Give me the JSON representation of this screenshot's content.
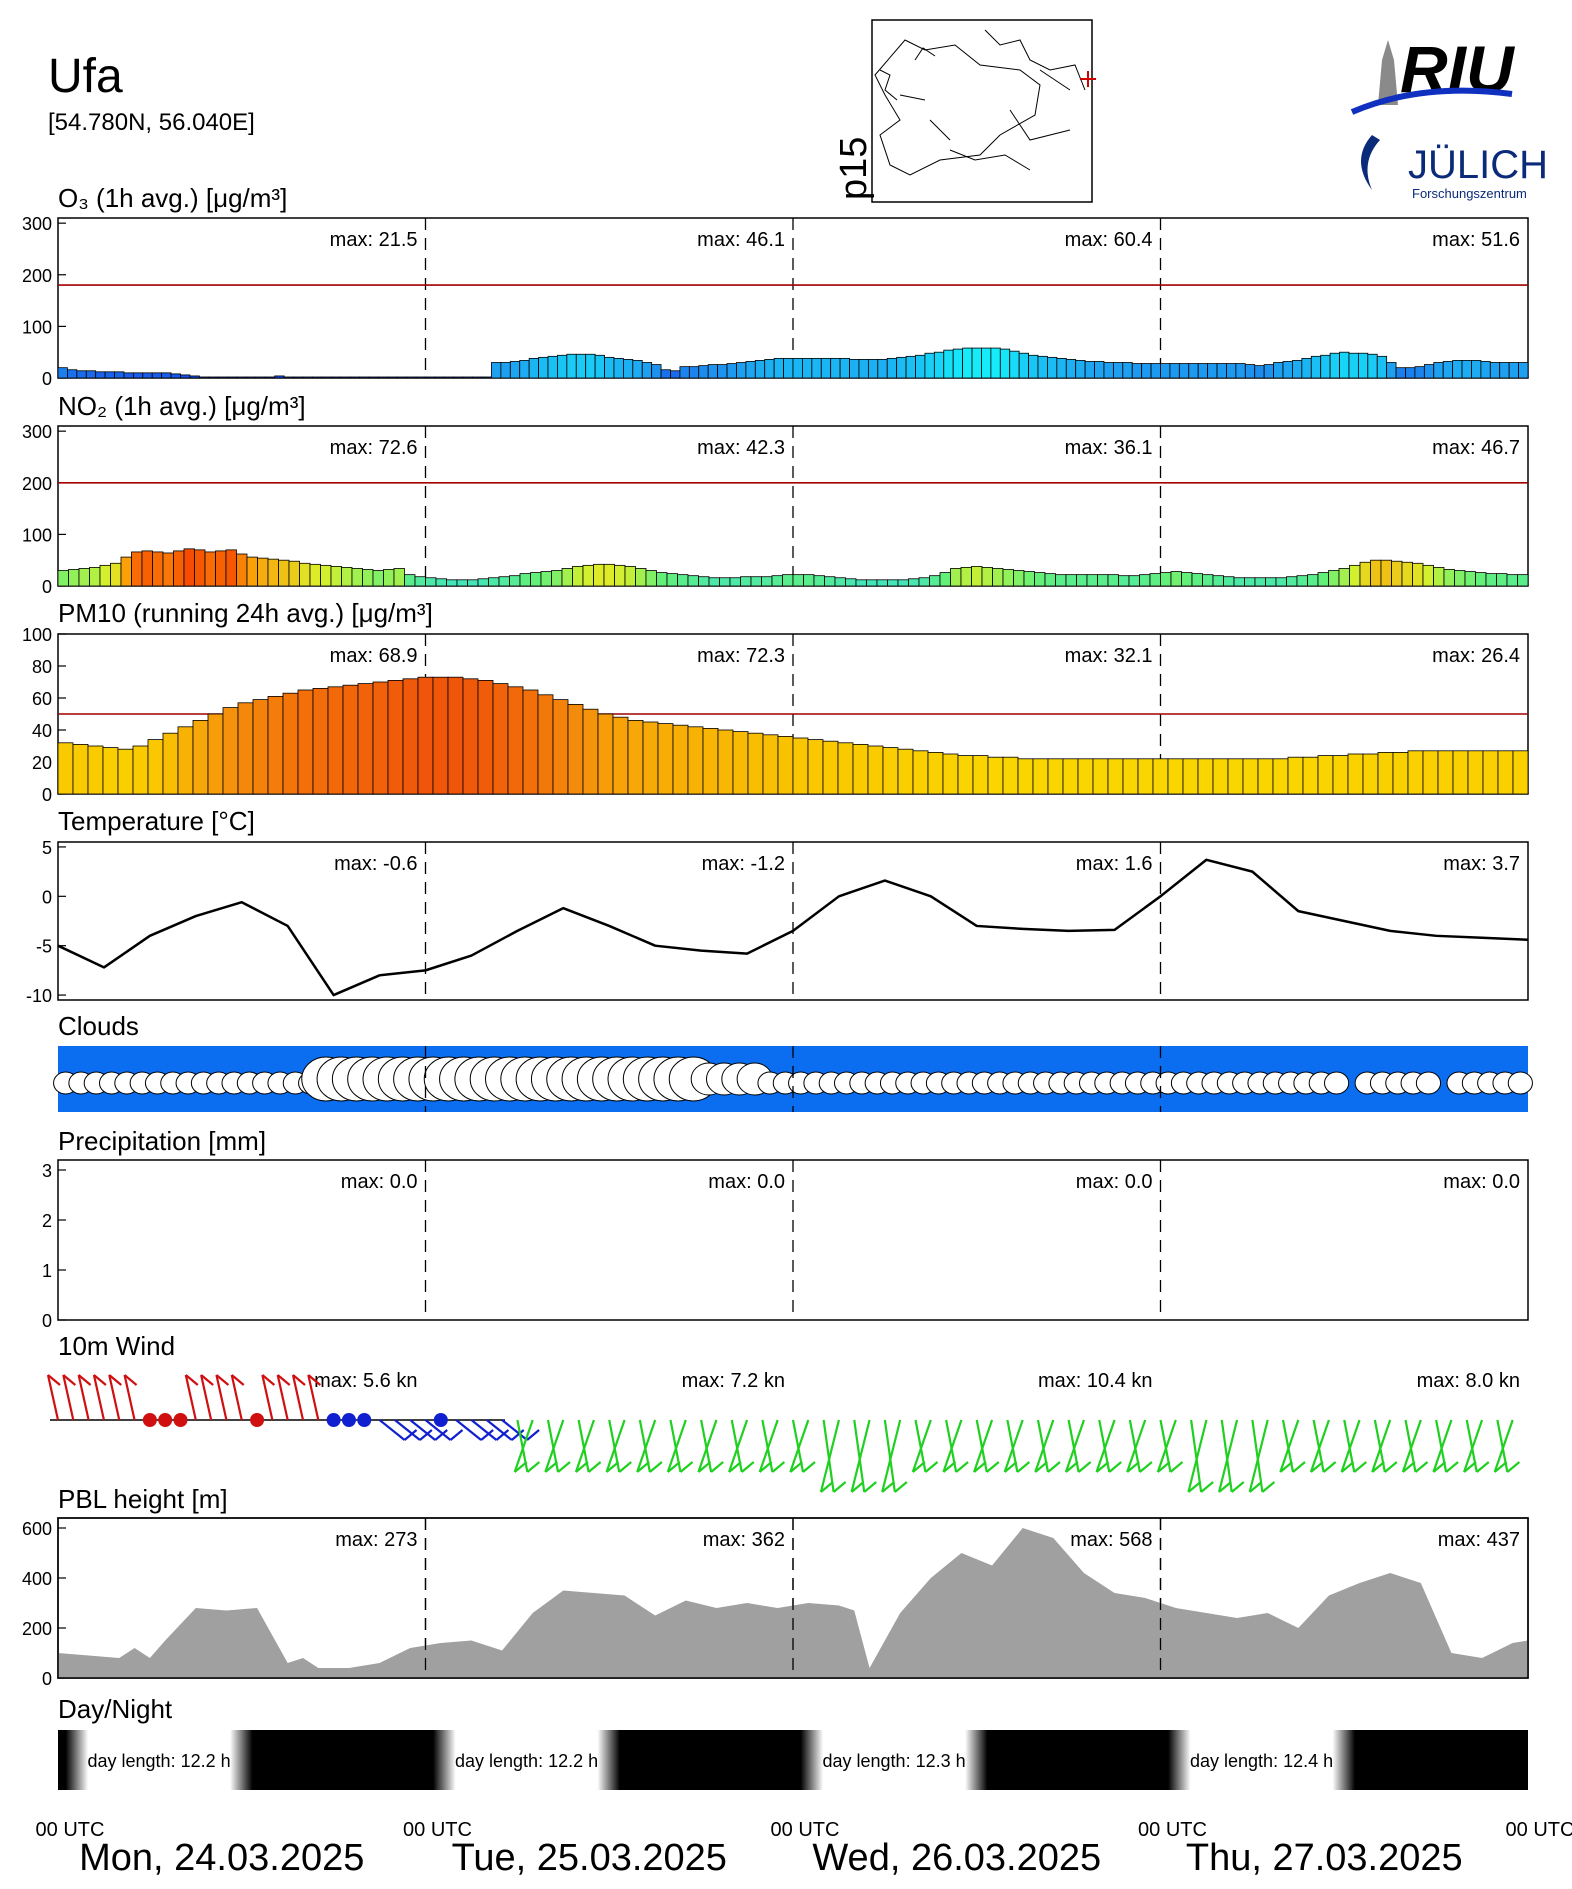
{
  "header": {
    "station": "Ufa",
    "coords": "[54.780N, 56.040E]",
    "map_label": "p15",
    "logo_riu": "RIU",
    "logo_julich": "JÜLICH",
    "logo_julich_sub": "Forschungszentrum"
  },
  "days": [
    "Mon, 24.03.2025",
    "Tue, 25.03.2025",
    "Wed, 26.03.2025",
    "Thu, 27.03.2025"
  ],
  "utc_label": "00 UTC",
  "max_prefix": "max:",
  "chart_data": [
    {
      "type": "bar",
      "title": "O₃ (1h avg.) [μg/m³]",
      "ylim": [
        0,
        310
      ],
      "yticks": [
        0,
        100,
        200,
        300
      ],
      "threshold": 180,
      "maxima": [
        "21.5",
        "46.1",
        "60.4",
        "51.6"
      ],
      "values": [
        20,
        16,
        14,
        14,
        12,
        12,
        12,
        10,
        10,
        10,
        10,
        10,
        8,
        6,
        4,
        2,
        2,
        2,
        2,
        2,
        2,
        2,
        2,
        4,
        2,
        2,
        2,
        2,
        2,
        2,
        2,
        2,
        2,
        2,
        2,
        2,
        2,
        2,
        2,
        2,
        2,
        2,
        2,
        2,
        2,
        2,
        30,
        30,
        32,
        34,
        38,
        40,
        42,
        44,
        46,
        46,
        46,
        44,
        40,
        38,
        36,
        34,
        30,
        26,
        16,
        14,
        22,
        22,
        24,
        26,
        26,
        28,
        30,
        32,
        34,
        36,
        38,
        38,
        38,
        38,
        38,
        38,
        38,
        38,
        36,
        36,
        36,
        36,
        38,
        40,
        42,
        44,
        48,
        50,
        54,
        56,
        58,
        58,
        58,
        58,
        56,
        52,
        48,
        44,
        42,
        40,
        38,
        36,
        34,
        32,
        32,
        30,
        30,
        30,
        28,
        28,
        28,
        28,
        28,
        28,
        28,
        28,
        28,
        28,
        28,
        28,
        26,
        24,
        26,
        30,
        32,
        34,
        38,
        42,
        44,
        48,
        50,
        48,
        48,
        46,
        42,
        30,
        20,
        20,
        22,
        26,
        30,
        32,
        34,
        34,
        34,
        32,
        30,
        30,
        30,
        30
      ],
      "colors": "o3"
    },
    {
      "type": "bar",
      "title": "NO₂ (1h avg.) [μg/m³]",
      "ylim": [
        0,
        310
      ],
      "yticks": [
        0,
        100,
        200,
        300
      ],
      "threshold": 200,
      "maxima": [
        "72.6",
        "42.3",
        "36.1",
        "46.7"
      ],
      "values": [
        30,
        32,
        34,
        36,
        40,
        44,
        56,
        66,
        68,
        66,
        64,
        68,
        72,
        70,
        66,
        68,
        70,
        62,
        56,
        54,
        52,
        50,
        48,
        44,
        42,
        40,
        38,
        36,
        34,
        32,
        30,
        32,
        34,
        22,
        18,
        16,
        14,
        12,
        12,
        12,
        14,
        16,
        18,
        20,
        24,
        26,
        28,
        30,
        34,
        38,
        40,
        42,
        42,
        40,
        38,
        34,
        30,
        26,
        24,
        22,
        20,
        18,
        16,
        16,
        16,
        18,
        18,
        18,
        20,
        22,
        22,
        22,
        20,
        18,
        16,
        14,
        12,
        12,
        12,
        12,
        12,
        14,
        16,
        20,
        26,
        34,
        36,
        38,
        36,
        34,
        32,
        30,
        28,
        26,
        24,
        22,
        22,
        22,
        22,
        22,
        22,
        20,
        20,
        22,
        24,
        26,
        28,
        26,
        24,
        22,
        20,
        18,
        16,
        16,
        16,
        16,
        16,
        18,
        20,
        22,
        26,
        30,
        34,
        40,
        46,
        50,
        50,
        48,
        46,
        44,
        40,
        36,
        32,
        30,
        28,
        26,
        24,
        24,
        22,
        22
      ],
      "colors": "no2"
    },
    {
      "type": "bar",
      "title": "PM10 (running 24h avg.) [μg/m³]",
      "ylim": [
        0,
        100
      ],
      "yticks": [
        0,
        20,
        40,
        60,
        80,
        100
      ],
      "threshold": 50,
      "maxima": [
        "68.9",
        "72.3",
        "32.1",
        "26.4"
      ],
      "values": [
        32,
        31,
        30,
        29,
        28,
        30,
        34,
        38,
        42,
        46,
        50,
        54,
        57,
        59,
        61,
        63,
        65,
        66,
        67,
        68,
        69,
        70,
        71,
        72,
        73,
        73,
        73,
        72,
        71,
        69,
        67,
        65,
        62,
        59,
        56,
        53,
        50,
        48,
        46,
        45,
        44,
        43,
        42,
        41,
        40,
        39,
        38,
        37,
        36,
        35,
        34,
        33,
        32,
        31,
        30,
        29,
        28,
        27,
        26,
        25,
        24,
        24,
        23,
        23,
        22,
        22,
        22,
        22,
        22,
        22,
        22,
        22,
        22,
        22,
        22,
        22,
        22,
        22,
        22,
        22,
        22,
        22,
        23,
        23,
        24,
        24,
        25,
        25,
        26,
        26,
        27,
        27,
        27,
        27,
        27,
        27,
        27,
        27
      ],
      "colors": "pm10"
    },
    {
      "type": "line",
      "title": "Temperature [°C]",
      "ylim": [
        -10.5,
        5.5
      ],
      "yticks": [
        -10,
        -5,
        0,
        5
      ],
      "maxima": [
        "-0.6",
        "-1.2",
        "1.6",
        "3.7"
      ],
      "x_hours": [
        0,
        3,
        6,
        9,
        12,
        15,
        18,
        21,
        24,
        27,
        30,
        33,
        36,
        39,
        42,
        45,
        48,
        51,
        54,
        57,
        60,
        63,
        66,
        69,
        72,
        75,
        78,
        81,
        84,
        87,
        90,
        93,
        96
      ],
      "values": [
        -5.0,
        -7.2,
        -4.0,
        -2.0,
        -0.6,
        -3.0,
        -10.0,
        -8.0,
        -7.5,
        -6.0,
        -3.5,
        -1.2,
        -3.0,
        -5.0,
        -5.5,
        -5.8,
        -3.5,
        0.0,
        1.6,
        0.0,
        -3.0,
        -3.3,
        -3.5,
        -3.4,
        0.0,
        3.7,
        2.5,
        -1.5,
        -2.5,
        -3.5,
        -4.0,
        -4.2,
        -4.4
      ]
    },
    {
      "type": "bar",
      "title": "Precipitation [mm]",
      "ylim": [
        0,
        3.2
      ],
      "yticks": [
        0,
        1,
        2,
        3
      ],
      "maxima": [
        "0.0",
        "0.0",
        "0.0",
        "0.0"
      ],
      "values": []
    },
    {
      "type": "area",
      "title": "PBL height [m]",
      "ylim": [
        0,
        640
      ],
      "yticks": [
        0,
        200,
        400,
        600
      ],
      "maxima": [
        "273",
        "362",
        "568",
        "437"
      ],
      "x_hours": [
        0,
        2,
        4,
        5,
        6,
        7,
        9,
        11,
        13,
        15,
        16,
        17,
        19,
        21,
        23,
        25,
        27,
        29,
        31,
        33,
        35,
        37,
        39,
        41,
        43,
        45,
        47,
        49,
        51,
        52,
        53,
        55,
        57,
        59,
        61,
        63,
        65,
        67,
        69,
        71,
        73,
        75,
        77,
        79,
        81,
        83,
        85,
        87,
        89,
        91,
        93,
        95,
        96
      ],
      "values": [
        100,
        90,
        80,
        120,
        80,
        150,
        280,
        270,
        280,
        60,
        80,
        40,
        40,
        60,
        120,
        140,
        150,
        110,
        260,
        350,
        340,
        330,
        250,
        310,
        280,
        300,
        280,
        300,
        290,
        270,
        40,
        260,
        400,
        500,
        450,
        600,
        560,
        420,
        340,
        320,
        280,
        260,
        240,
        260,
        200,
        330,
        380,
        420,
        380,
        100,
        80,
        140,
        150
      ]
    }
  ],
  "clouds": {
    "title": "Clouds"
  },
  "wind": {
    "title": "10m Wind",
    "maxima": [
      "5.6 kn",
      "7.2 kn",
      "10.4 kn",
      "8.0 kn"
    ]
  },
  "daynight": {
    "title": "Day/Night",
    "lengths": [
      "12.2 h",
      "12.2 h",
      "12.3 h",
      "12.4 h"
    ],
    "label": "day length:"
  },
  "colors": {
    "threshold": "#a00000",
    "cloud_bg": "#0b6ef0",
    "pbl": "#a0a0a0",
    "wind_red": "#d01010",
    "wind_blue": "#1020d0",
    "wind_green": "#20d020"
  }
}
